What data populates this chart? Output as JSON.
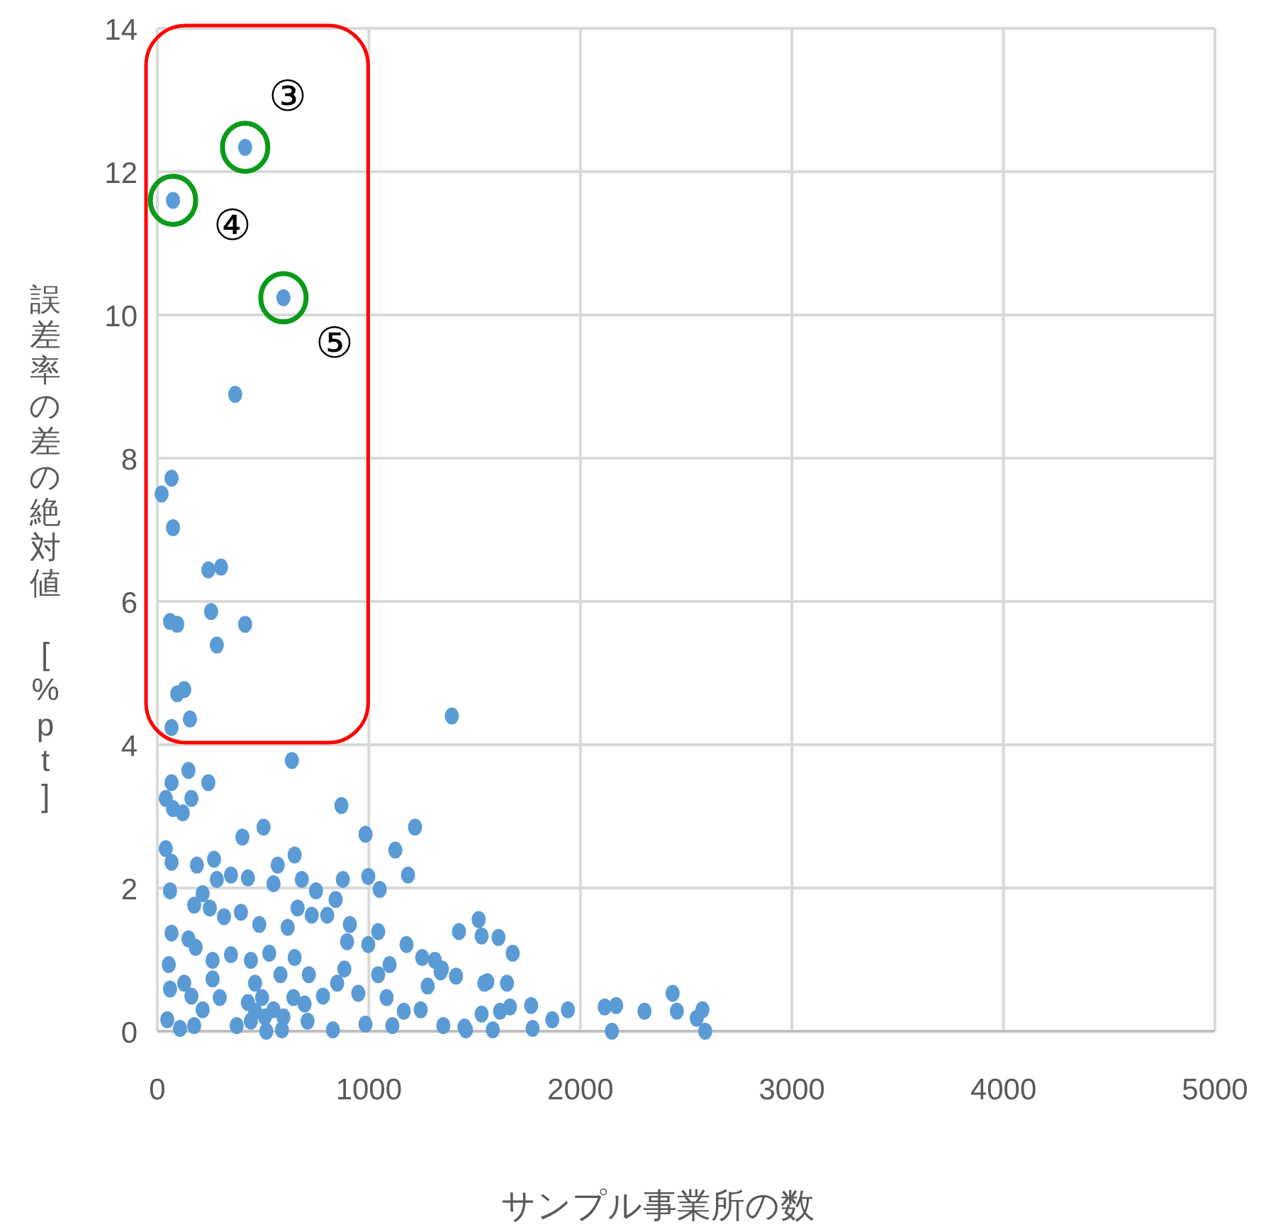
{
  "chart_data": {
    "type": "scatter",
    "xlabel": "サンプル事業所の数",
    "ylabel": "誤差率の差の絶対値　[%pt]",
    "xlim": [
      0,
      5000
    ],
    "ylim": [
      0,
      14
    ],
    "xticks": [
      0,
      1000,
      2000,
      3000,
      4000,
      5000
    ],
    "yticks": [
      0,
      2,
      4,
      6,
      8,
      10,
      12,
      14
    ],
    "grid": true,
    "marker": "circle",
    "series": [
      {
        "color": "#5b9bd5",
        "x": [
          415,
          74,
          596,
          368,
          67,
          20,
          74,
          241,
          301,
          60,
          94,
          254,
          415,
          281,
          94,
          127,
          154,
          67,
          636,
          1392,
          147,
          67,
          241,
          40,
          74,
          120,
          161,
          870,
          502,
          402,
          984,
          1218,
          1125,
          40,
          67,
          187,
          268,
          649,
          569,
          1185,
          997,
          877,
          348,
          428,
          683,
          281,
          549,
          60,
          1051,
          750,
          843,
          214,
          174,
          248,
          395,
          663,
          730,
          803,
          315,
          1519,
          482,
          616,
          910,
          1426,
          1533,
          67,
          147,
          181,
          1044,
          997,
          897,
          1178,
          529,
          348,
          442,
          649,
          1252,
          1312,
          261,
          54,
          1412,
          1345,
          884,
          1098,
          582,
          261,
          716,
          462,
          1044,
          127,
          60,
          1546,
          1278,
          850,
          161,
          295,
          495,
          643,
          783,
          950,
          1084,
          428,
          696,
          214,
          1245,
          1165,
          47,
          107,
          174,
          375,
          515,
          589,
          830,
          984,
          1111,
          1352,
          1452,
          1533,
          442,
          509,
          462,
          549,
          596,
          710,
          1613,
          1680,
          1339,
          1560,
          1653,
          1667,
          1620,
          1767,
          1941,
          1867,
          1774,
          1586,
          1459,
          2115,
          2169,
          2149,
          2303,
          2436,
          2456,
          2577,
          2550,
          2590
        ],
        "values": [
          12.34,
          11.6,
          10.24,
          8.89,
          7.72,
          7.5,
          7.03,
          6.44,
          6.48,
          5.72,
          5.68,
          5.86,
          5.68,
          5.39,
          4.71,
          4.77,
          4.36,
          4.24,
          3.78,
          4.4,
          3.64,
          3.47,
          3.47,
          3.25,
          3.11,
          3.05,
          3.25,
          3.15,
          2.85,
          2.71,
          2.75,
          2.85,
          2.53,
          2.55,
          2.36,
          2.32,
          2.4,
          2.46,
          2.32,
          2.18,
          2.16,
          2.12,
          2.18,
          2.14,
          2.12,
          2.12,
          2.06,
          1.96,
          1.98,
          1.96,
          1.84,
          1.92,
          1.76,
          1.72,
          1.66,
          1.72,
          1.62,
          1.62,
          1.6,
          1.56,
          1.49,
          1.45,
          1.49,
          1.39,
          1.33,
          1.37,
          1.29,
          1.17,
          1.39,
          1.21,
          1.25,
          1.21,
          1.09,
          1.07,
          0.99,
          1.03,
          1.03,
          0.99,
          0.99,
          0.93,
          0.77,
          0.87,
          0.87,
          0.93,
          0.79,
          0.73,
          0.79,
          0.67,
          0.79,
          0.67,
          0.59,
          0.67,
          0.63,
          0.67,
          0.49,
          0.47,
          0.47,
          0.47,
          0.49,
          0.53,
          0.47,
          0.4,
          0.38,
          0.3,
          0.3,
          0.28,
          0.16,
          0.04,
          0.08,
          0.08,
          0.0,
          0.02,
          0.02,
          0.1,
          0.08,
          0.08,
          0.06,
          0.24,
          0.14,
          0.2,
          0.28,
          0.3,
          0.2,
          0.14,
          1.31,
          1.09,
          0.83,
          0.69,
          0.67,
          0.34,
          0.28,
          0.36,
          0.3,
          0.16,
          0.04,
          0.02,
          0.02,
          0.34,
          0.36,
          0.0,
          0.28,
          0.53,
          0.28,
          0.3,
          0.18,
          0.0
        ]
      }
    ],
    "annotations": [
      {
        "text": "③",
        "x": 415,
        "y": 12.34
      },
      {
        "text": "④",
        "x": 74,
        "y": 11.6
      },
      {
        "text": "⑤",
        "x": 596,
        "y": 10.24
      }
    ]
  }
}
